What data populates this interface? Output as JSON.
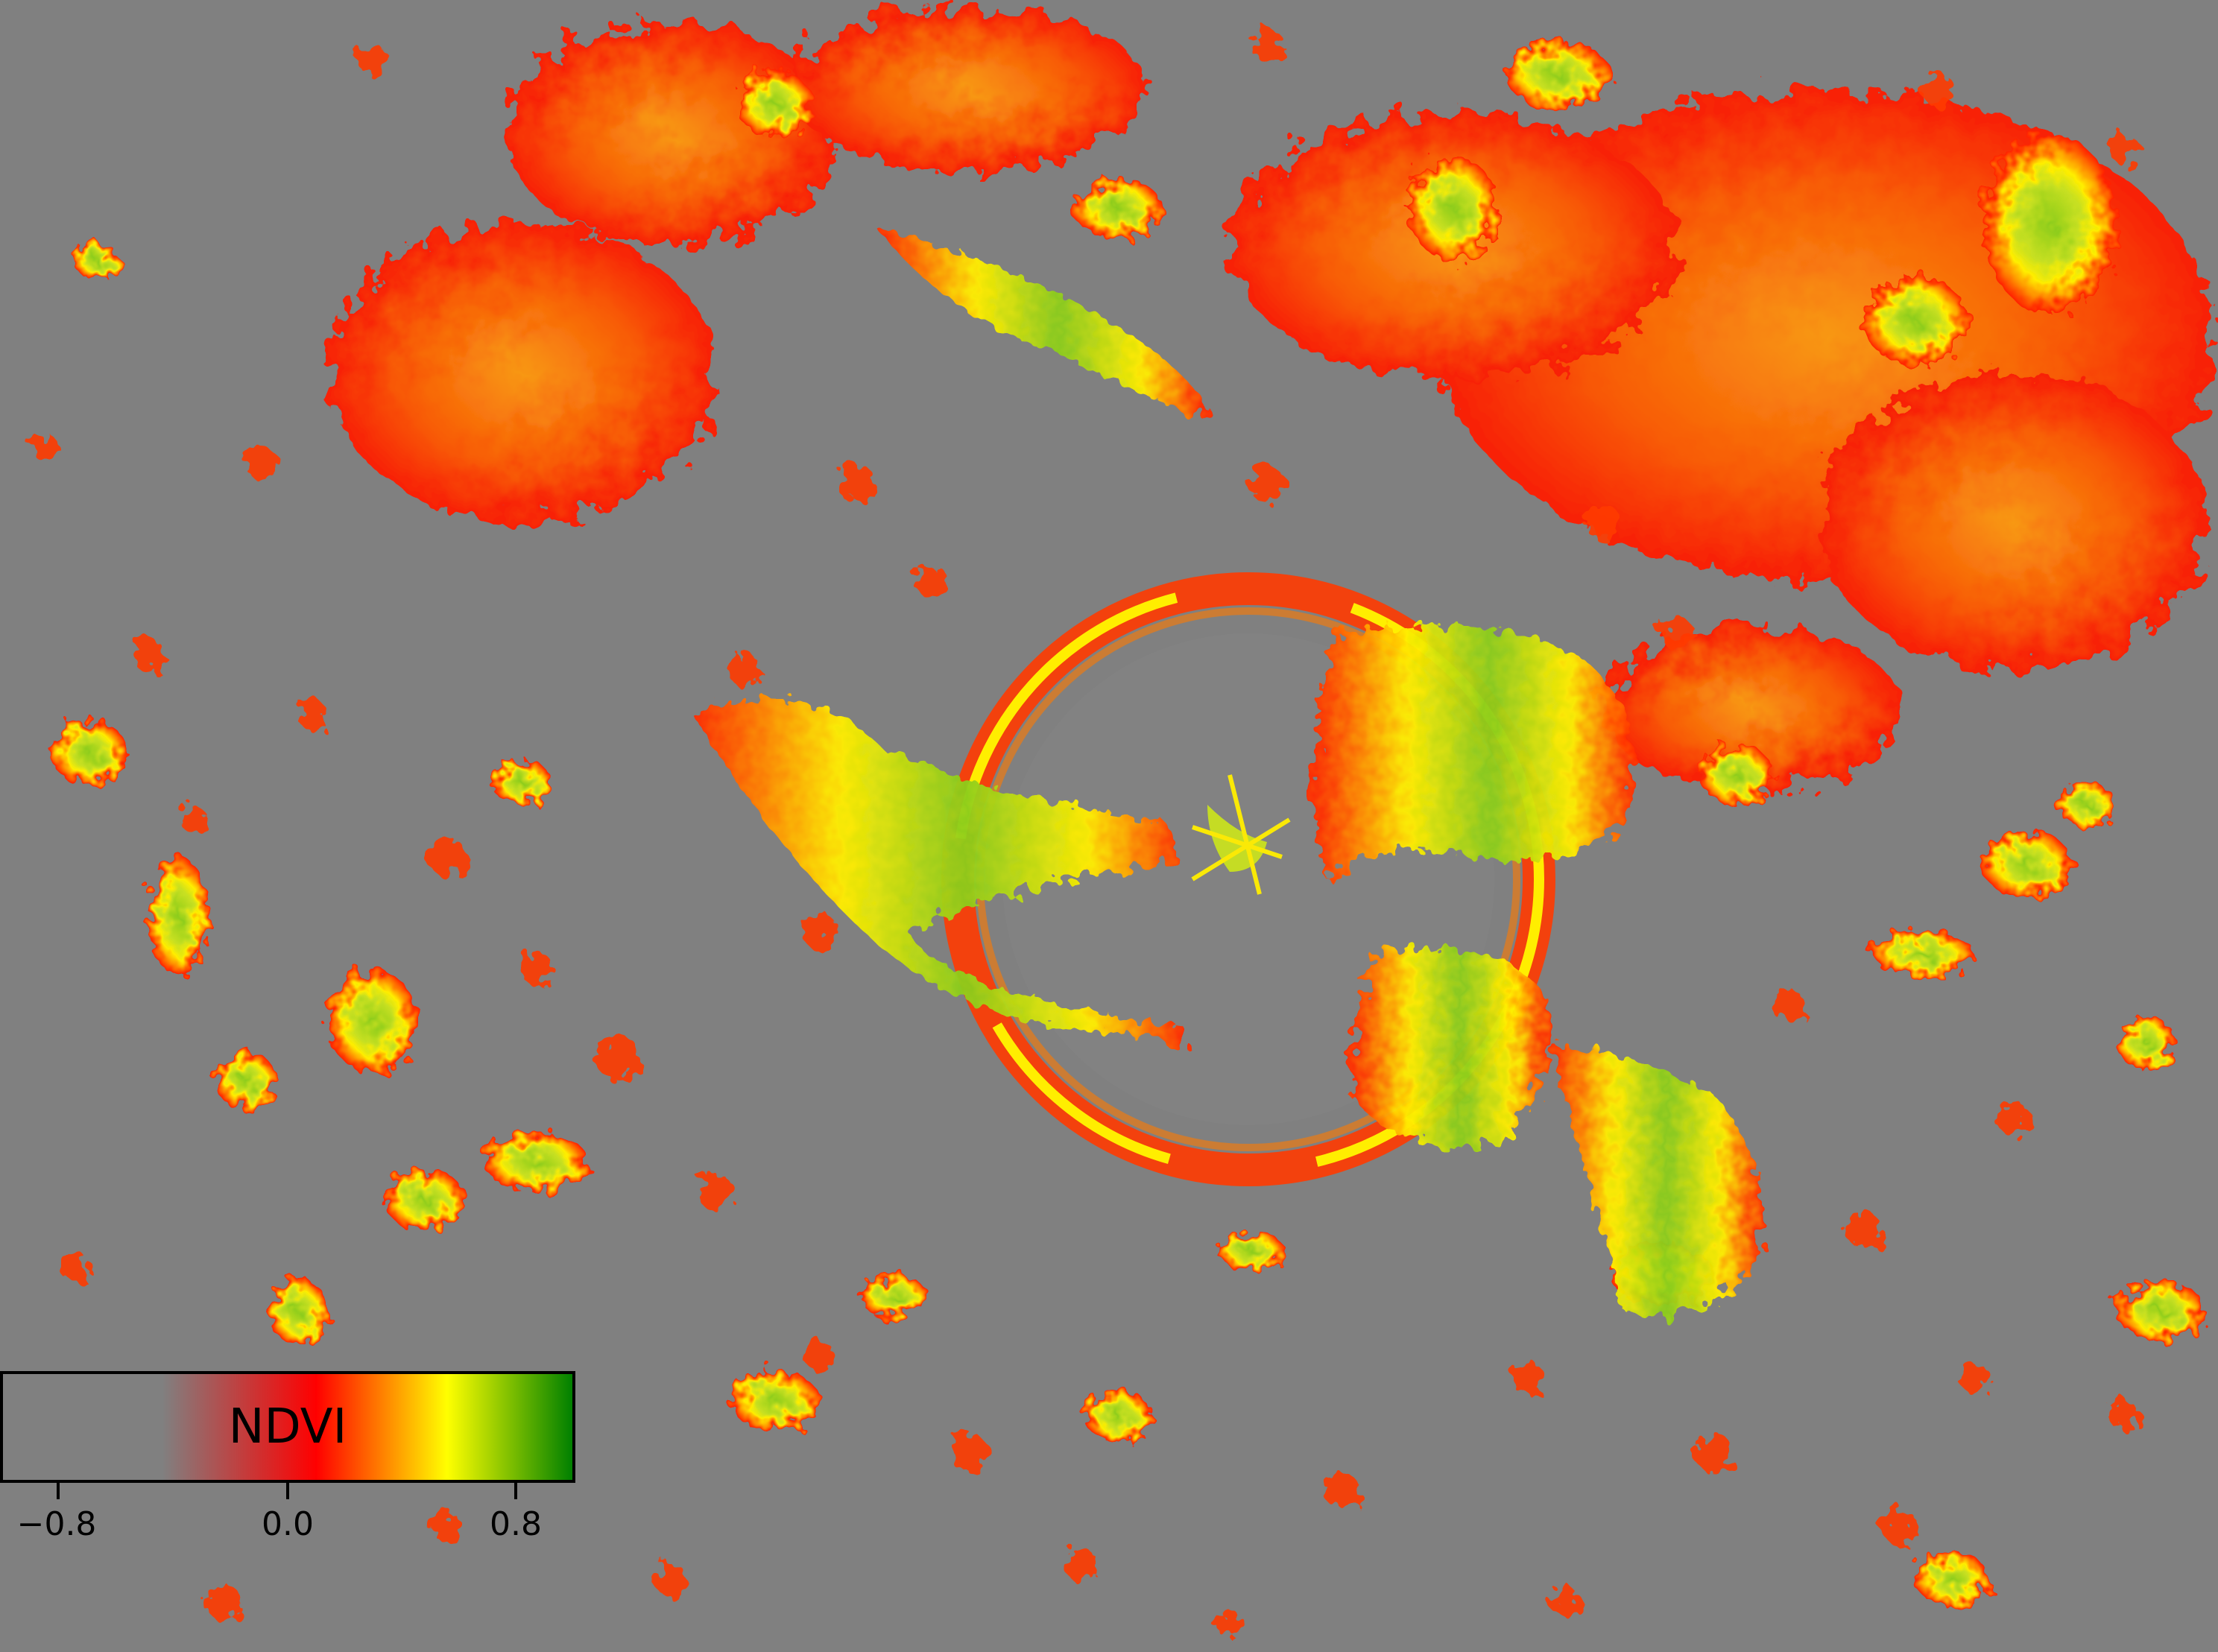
{
  "colorbar": {
    "label": "NDVI",
    "ticks": [
      "−0.8",
      "0.0",
      "0.8"
    ],
    "range": [
      -1.0,
      1.0
    ],
    "colors": [
      "#808080",
      "#808080",
      "#ff0000",
      "#ffff00",
      "#008000"
    ]
  },
  "palette": {
    "background": "#808080",
    "low": "#ff0000",
    "mid_low": "#ff7a00",
    "mid": "#ffff00",
    "high": "#8ccc1e"
  }
}
